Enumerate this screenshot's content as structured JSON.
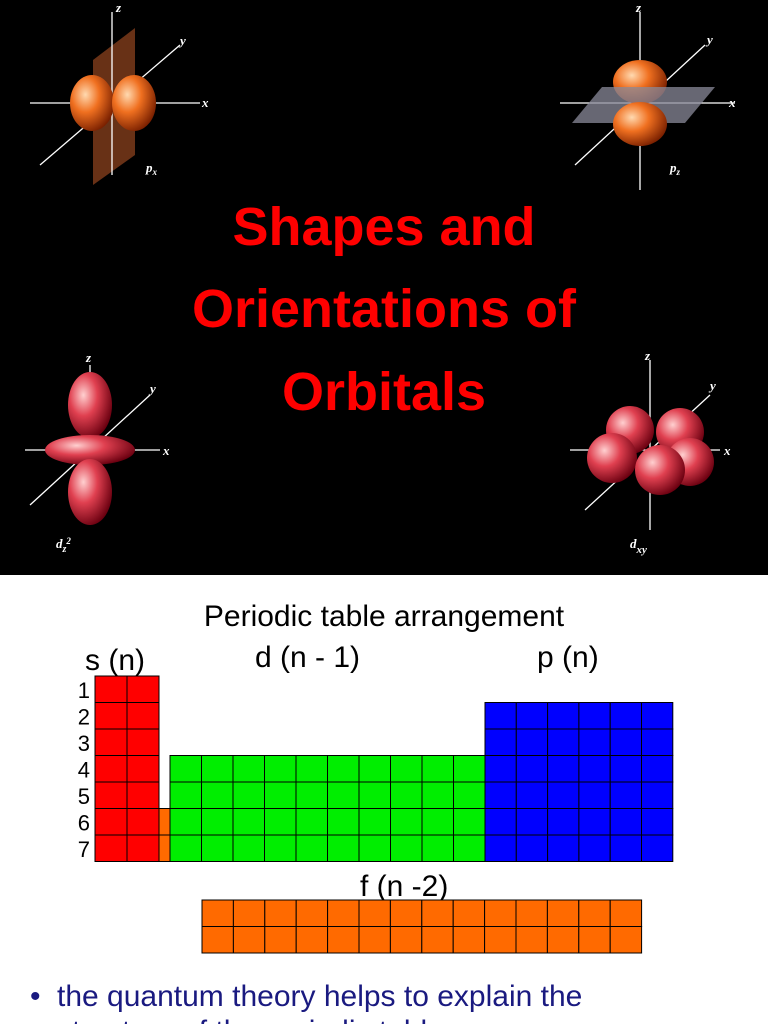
{
  "slide1": {
    "title_lines": [
      "Shapes and",
      "Orientations of",
      "Orbitals"
    ],
    "orbitals": [
      {
        "axes": [
          "z",
          "y",
          "x"
        ],
        "label": {
          "base": "p",
          "sub": "x"
        }
      },
      {
        "axes": [
          "z",
          "y",
          "x"
        ],
        "label": {
          "base": "p",
          "sub": "z"
        }
      },
      {
        "axes": [
          "z",
          "y",
          "x"
        ],
        "label": {
          "base": "d",
          "sub": "z",
          "sup": "2"
        }
      },
      {
        "axes": [
          "z",
          "y",
          "x"
        ],
        "label": {
          "base": "d",
          "sub": "xy"
        }
      }
    ]
  },
  "slide2": {
    "title": "Periodic table arrangement",
    "blocks": {
      "s": "s (n)",
      "d": "d (n - 1)",
      "p": "p (n)",
      "f": "f (n -2)"
    },
    "rows": [
      "1",
      "2",
      "3",
      "4",
      "5",
      "6",
      "7"
    ],
    "bullet": "the quantum theory helps to explain the structure of the periodic table"
  }
}
